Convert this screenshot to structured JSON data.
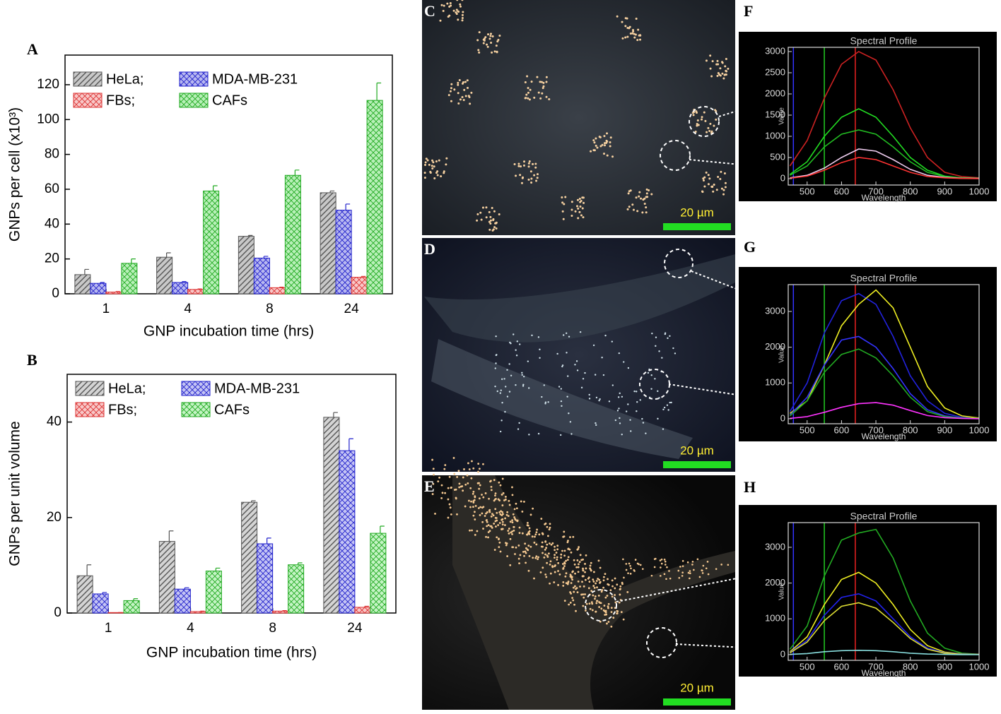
{
  "chart_data": [
    {
      "type": "bar",
      "panel_label": "A",
      "x_label": "GNP incubation time (hrs)",
      "y_label": "GNPs per cell (x10³)",
      "categories": [
        "1",
        "4",
        "8",
        "24"
      ],
      "ylim": [
        0,
        137
      ],
      "yticks": [
        0,
        20,
        40,
        60,
        80,
        100,
        120
      ],
      "series": [
        {
          "name": "HeLa;",
          "color": "#555555",
          "fill": "#c8c8c8",
          "pattern": "hatch",
          "values": [
            11,
            21,
            33,
            58
          ],
          "errors": [
            3,
            2.5,
            0.5,
            1
          ]
        },
        {
          "name": "MDA-MB-231",
          "color": "#2222cc",
          "fill": "#b8b8f0",
          "pattern": "cross",
          "values": [
            6,
            6.5,
            20.5,
            48
          ],
          "errors": [
            0.5,
            0.5,
            1,
            3.5
          ]
        },
        {
          "name": "FBs;",
          "color": "#dd3333",
          "fill": "#f8c8c8",
          "pattern": "cross",
          "values": [
            1,
            2.5,
            3.5,
            9.5
          ],
          "errors": [
            0.3,
            0.3,
            0.3,
            0.5
          ]
        },
        {
          "name": "CAFs",
          "color": "#22aa22",
          "fill": "#b8f0b8",
          "pattern": "cross",
          "values": [
            17.5,
            59,
            68,
            111
          ],
          "errors": [
            2.5,
            3,
            3,
            10
          ]
        }
      ]
    },
    {
      "type": "bar",
      "panel_label": "B",
      "x_label": "GNP incubation time (hrs)",
      "y_label": "GNPs per unit volume",
      "categories": [
        "1",
        "4",
        "8",
        "24"
      ],
      "ylim": [
        0,
        50
      ],
      "yticks": [
        0,
        20,
        40
      ],
      "series": [
        {
          "name": "HeLa;",
          "color": "#555555",
          "fill": "#d4d4d4",
          "pattern": "hatch",
          "values": [
            7.8,
            15,
            23.2,
            41
          ],
          "errors": [
            2.3,
            2.2,
            0.3,
            1
          ]
        },
        {
          "name": "MDA-MB-231",
          "color": "#2222cc",
          "fill": "#c4c4f4",
          "pattern": "cross",
          "values": [
            4,
            5,
            14.5,
            34
          ],
          "errors": [
            0.3,
            0.3,
            1.2,
            2.5
          ]
        },
        {
          "name": "FBs;",
          "color": "#dd3333",
          "fill": "#f8c8c8",
          "pattern": "cross",
          "values": [
            0.1,
            0.3,
            0.4,
            1.2
          ],
          "errors": [
            0,
            0.1,
            0.1,
            0.2
          ]
        },
        {
          "name": "CAFs",
          "color": "#22aa22",
          "fill": "#c4f4c4",
          "pattern": "cross",
          "values": [
            2.6,
            8.8,
            10.1,
            16.7
          ],
          "errors": [
            0.4,
            0.6,
            0.4,
            1.5
          ]
        }
      ]
    },
    {
      "type": "line",
      "panel_label": "F",
      "title": "Spectral Profile",
      "x_label": "Wavelength",
      "y_label": "Value",
      "xlim": [
        445,
        1000
      ],
      "ylim": [
        -150,
        3100
      ],
      "xticks": [
        500,
        600,
        700,
        800,
        900,
        1000
      ],
      "yticks": [
        0,
        500,
        1000,
        1500,
        2000,
        2500,
        3000
      ],
      "markers": [
        {
          "x": 460,
          "color": "#3333ff"
        },
        {
          "x": 550,
          "color": "#22cc22"
        },
        {
          "x": 640,
          "color": "#ee2222"
        }
      ],
      "x": [
        450,
        500,
        550,
        600,
        650,
        700,
        750,
        800,
        850,
        900,
        950,
        1000
      ],
      "series": [
        {
          "color": "#cc2222",
          "values": [
            300,
            900,
            1900,
            2700,
            3000,
            2800,
            2100,
            1200,
            500,
            150,
            50,
            20
          ]
        },
        {
          "color": "#22dd22",
          "values": [
            100,
            400,
            1000,
            1450,
            1650,
            1450,
            1000,
            500,
            200,
            60,
            20,
            10
          ]
        },
        {
          "color": "#22bb22",
          "values": [
            80,
            300,
            750,
            1050,
            1150,
            1050,
            750,
            400,
            150,
            50,
            20,
            10
          ]
        },
        {
          "color": "#eeccee",
          "values": [
            20,
            80,
            250,
            500,
            700,
            650,
            450,
            220,
            80,
            30,
            10,
            5
          ]
        },
        {
          "color": "#ff3333",
          "values": [
            10,
            60,
            200,
            380,
            500,
            450,
            300,
            150,
            50,
            20,
            5,
            0
          ]
        }
      ]
    },
    {
      "type": "line",
      "panel_label": "G",
      "title": "Spectral Profile",
      "x_label": "Wavelength",
      "y_label": "Value",
      "xlim": [
        445,
        1000
      ],
      "ylim": [
        -140,
        3750
      ],
      "xticks": [
        500,
        600,
        700,
        800,
        900,
        1000
      ],
      "yticks": [
        0,
        1000,
        2000,
        3000
      ],
      "markers": [
        {
          "x": 460,
          "color": "#3333ff"
        },
        {
          "x": 550,
          "color": "#22cc22"
        },
        {
          "x": 640,
          "color": "#ee2222"
        }
      ],
      "x": [
        450,
        500,
        550,
        600,
        650,
        700,
        750,
        800,
        850,
        900,
        950,
        1000
      ],
      "series": [
        {
          "color": "#2222dd",
          "values": [
            200,
            1000,
            2400,
            3300,
            3500,
            3200,
            2300,
            1200,
            500,
            150,
            40,
            10
          ]
        },
        {
          "color": "#eeee22",
          "values": [
            150,
            500,
            1500,
            2600,
            3200,
            3600,
            3100,
            2000,
            900,
            300,
            80,
            20
          ]
        },
        {
          "color": "#3333ff",
          "values": [
            100,
            600,
            1500,
            2200,
            2300,
            2000,
            1400,
            700,
            250,
            80,
            20,
            5
          ]
        },
        {
          "color": "#22aa22",
          "values": [
            80,
            500,
            1300,
            1800,
            1950,
            1700,
            1200,
            600,
            200,
            60,
            20,
            5
          ]
        },
        {
          "color": "#ff33ff",
          "values": [
            10,
            60,
            180,
            320,
            420,
            450,
            380,
            230,
            90,
            30,
            10,
            0
          ]
        }
      ]
    },
    {
      "type": "line",
      "panel_label": "H",
      "title": "Spectral Profile",
      "x_label": "Wavelength",
      "y_label": "Value",
      "xlim": [
        445,
        1000
      ],
      "ylim": [
        -160,
        3690
      ],
      "xticks": [
        500,
        600,
        700,
        800,
        900,
        1000
      ],
      "yticks": [
        0,
        1000,
        2000,
        3000
      ],
      "markers": [
        {
          "x": 460,
          "color": "#3333ff"
        },
        {
          "x": 550,
          "color": "#22cc22"
        },
        {
          "x": 640,
          "color": "#ee2222"
        }
      ],
      "x": [
        450,
        500,
        550,
        600,
        650,
        700,
        750,
        800,
        850,
        900,
        950,
        1000
      ],
      "series": [
        {
          "color": "#22aa22",
          "values": [
            150,
            800,
            2200,
            3200,
            3400,
            3500,
            2700,
            1500,
            600,
            180,
            40,
            10
          ]
        },
        {
          "color": "#eeee22",
          "values": [
            80,
            500,
            1400,
            2100,
            2300,
            2000,
            1400,
            700,
            250,
            70,
            20,
            5
          ]
        },
        {
          "color": "#2222ee",
          "values": [
            60,
            400,
            1100,
            1600,
            1700,
            1500,
            1000,
            500,
            180,
            50,
            15,
            5
          ]
        },
        {
          "color": "#dddd33",
          "values": [
            50,
            350,
            950,
            1350,
            1450,
            1300,
            900,
            450,
            150,
            40,
            10,
            5
          ]
        },
        {
          "color": "#88dddd",
          "values": [
            5,
            30,
            80,
            110,
            120,
            110,
            80,
            40,
            15,
            5,
            0,
            0
          ]
        }
      ]
    }
  ],
  "images": [
    {
      "label": "C",
      "scale_bar": "20 µm"
    },
    {
      "label": "D",
      "scale_bar": "20 µm"
    },
    {
      "label": "E",
      "scale_bar": "20 µm"
    }
  ]
}
